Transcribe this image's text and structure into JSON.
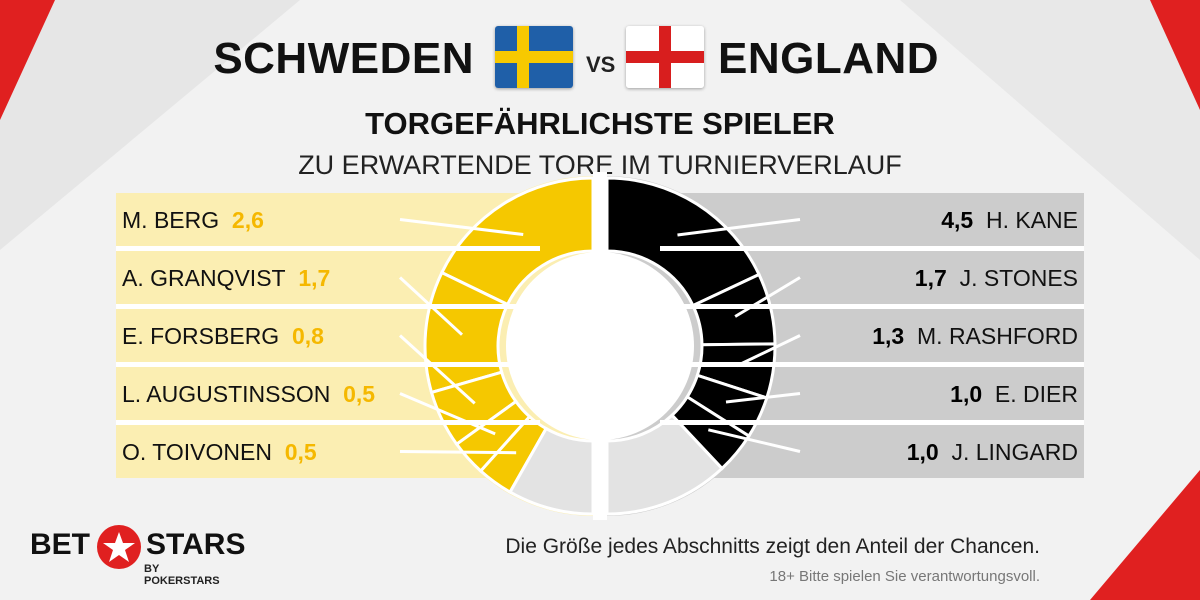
{
  "header": {
    "team_home": "SCHWEDEN",
    "vs": "VS",
    "team_away": "ENGLAND",
    "subtitle": "TORGEFÄHRLICHSTE SPIELER",
    "tagline": "ZU ERWARTENDE TORE IM TURNIERVERLAUF"
  },
  "colors": {
    "home_accent": "#f5c800",
    "home_panel": "#fbeeb2",
    "away_accent": "#000000",
    "away_panel": "#cccccc",
    "remainder": "#e3e3e3",
    "corner_red": "#e02020"
  },
  "chart_data": [
    {
      "type": "pie",
      "series_side": "left",
      "categories": [
        "M. BERG",
        "A. GRANQVIST",
        "E. FORSBERG",
        "L. AUGUSTINSSON",
        "O. TOIVONEN"
      ],
      "values": [
        "2,6",
        "1,7",
        "0,8",
        "0,5",
        "0,5"
      ],
      "numeric_values": [
        2.6,
        1.7,
        0.8,
        0.5,
        0.5
      ],
      "remainder": 1.2
    },
    {
      "type": "pie",
      "series_side": "right",
      "categories": [
        "H. KANE",
        "J. STONES",
        "M. RASHFORD",
        "E. DIER",
        "J. LINGARD"
      ],
      "values": [
        "4,5",
        "1,7",
        "1,3",
        "1,0",
        "1,0"
      ],
      "numeric_values": [
        4.5,
        1.7,
        1.3,
        1.0,
        1.0
      ],
      "remainder": 3.0
    }
  ],
  "footer": {
    "logo_bet": "BET",
    "logo_stars": "STARS",
    "logo_sub": "BY POKERSTARS",
    "note": "Die Größe jedes Abschnitts zeigt den Anteil der Chancen.",
    "disclaimer": "18+ Bitte spielen Sie verantwortungsvoll."
  }
}
